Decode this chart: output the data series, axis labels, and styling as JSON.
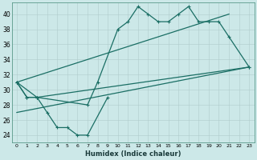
{
  "xlabel": "Humidex (Indice chaleur)",
  "background_color": "#cce8e8",
  "line_color": "#1a6e64",
  "xlim": [
    -0.5,
    23.5
  ],
  "ylim": [
    23,
    41.5
  ],
  "xticks": [
    0,
    1,
    2,
    3,
    4,
    5,
    6,
    7,
    8,
    9,
    10,
    11,
    12,
    13,
    14,
    15,
    16,
    17,
    18,
    19,
    20,
    21,
    22,
    23
  ],
  "yticks": [
    24,
    26,
    28,
    30,
    32,
    34,
    36,
    38,
    40
  ],
  "series": [
    {
      "x": [
        0,
        1,
        2,
        7,
        8,
        10,
        11,
        12,
        13,
        14,
        15,
        16,
        17,
        18,
        19,
        20,
        21,
        23
      ],
      "y": [
        31,
        29,
        29,
        28,
        31,
        38,
        39,
        41,
        40,
        39,
        39,
        40,
        41,
        39,
        39,
        39,
        37,
        33
      ]
    },
    {
      "x": [
        0,
        1,
        2,
        23
      ],
      "y": [
        31,
        29,
        29,
        33
      ]
    },
    {
      "x": [
        0,
        2,
        3,
        4,
        5,
        6,
        7,
        9
      ],
      "y": [
        31,
        29,
        27,
        25,
        25,
        24,
        24,
        29
      ]
    },
    {
      "x": [
        0,
        23
      ],
      "y": [
        27,
        33
      ]
    },
    {
      "x": [
        0,
        21
      ],
      "y": [
        31,
        40
      ]
    }
  ]
}
